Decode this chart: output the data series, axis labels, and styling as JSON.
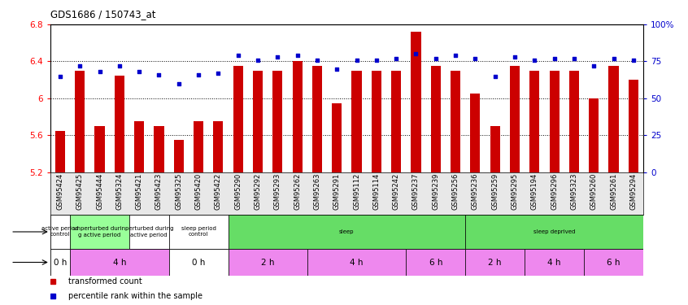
{
  "title": "GDS1686 / 150743_at",
  "samples": [
    "GSM95424",
    "GSM95425",
    "GSM95444",
    "GSM95324",
    "GSM95421",
    "GSM95423",
    "GSM95325",
    "GSM95420",
    "GSM95422",
    "GSM95290",
    "GSM95292",
    "GSM95293",
    "GSM95262",
    "GSM95263",
    "GSM95291",
    "GSM95112",
    "GSM95114",
    "GSM95242",
    "GSM95237",
    "GSM95239",
    "GSM95256",
    "GSM95236",
    "GSM95259",
    "GSM95295",
    "GSM95194",
    "GSM95296",
    "GSM95323",
    "GSM95260",
    "GSM95261",
    "GSM95294"
  ],
  "bar_values": [
    5.65,
    6.3,
    5.7,
    6.25,
    5.75,
    5.7,
    5.55,
    5.75,
    5.75,
    6.35,
    6.3,
    6.3,
    6.4,
    6.35,
    5.95,
    6.3,
    6.3,
    6.3,
    6.72,
    6.35,
    6.3,
    6.05,
    5.7,
    6.35,
    6.3,
    6.3,
    6.3,
    6.0,
    6.35,
    6.2
  ],
  "dot_values": [
    65,
    72,
    68,
    72,
    68,
    66,
    60,
    66,
    67,
    79,
    76,
    78,
    79,
    76,
    70,
    76,
    76,
    77,
    80,
    77,
    79,
    77,
    65,
    78,
    76,
    77,
    77,
    72,
    77,
    76
  ],
  "ylim_left": [
    5.2,
    6.8
  ],
  "ylim_right": [
    0,
    100
  ],
  "yticks_left": [
    5.2,
    5.6,
    6.0,
    6.4,
    6.8
  ],
  "ytick_labels_left": [
    "5.2",
    "5.6",
    "6",
    "6.4",
    "6.8"
  ],
  "yticks_right": [
    0,
    25,
    50,
    75,
    100
  ],
  "ytick_labels_right": [
    "0",
    "25",
    "50",
    "75",
    "100%"
  ],
  "hlines": [
    5.6,
    6.0,
    6.4
  ],
  "bar_color": "#cc0000",
  "dot_color": "#0000cc",
  "bar_width": 0.5,
  "protocol_groups": [
    {
      "label": "active period\ncontrol",
      "start": 0,
      "end": 1,
      "color": "#ffffff"
    },
    {
      "label": "unperturbed durin\ng active period",
      "start": 1,
      "end": 4,
      "color": "#99ff99"
    },
    {
      "label": "perturbed during\nactive period",
      "start": 4,
      "end": 6,
      "color": "#ffffff"
    },
    {
      "label": "sleep period\ncontrol",
      "start": 6,
      "end": 9,
      "color": "#ffffff"
    },
    {
      "label": "sleep",
      "start": 9,
      "end": 21,
      "color": "#66dd66"
    },
    {
      "label": "sleep deprived",
      "start": 21,
      "end": 30,
      "color": "#66dd66"
    }
  ],
  "time_groups": [
    {
      "label": "0 h",
      "start": 0,
      "end": 1,
      "color": "#ffffff"
    },
    {
      "label": "4 h",
      "start": 1,
      "end": 6,
      "color": "#ee88ee"
    },
    {
      "label": "0 h",
      "start": 6,
      "end": 9,
      "color": "#ffffff"
    },
    {
      "label": "2 h",
      "start": 9,
      "end": 13,
      "color": "#ee88ee"
    },
    {
      "label": "4 h",
      "start": 13,
      "end": 18,
      "color": "#ee88ee"
    },
    {
      "label": "6 h",
      "start": 18,
      "end": 21,
      "color": "#ee88ee"
    },
    {
      "label": "2 h",
      "start": 21,
      "end": 24,
      "color": "#ee88ee"
    },
    {
      "label": "4 h",
      "start": 24,
      "end": 27,
      "color": "#ee88ee"
    },
    {
      "label": "6 h",
      "start": 27,
      "end": 30,
      "color": "#ee88ee"
    }
  ],
  "legend_items": [
    {
      "label": "transformed count",
      "color": "#cc0000"
    },
    {
      "label": "percentile rank within the sample",
      "color": "#0000cc"
    }
  ],
  "bg_color": "#ffffff",
  "chart_bg": "#ffffff"
}
